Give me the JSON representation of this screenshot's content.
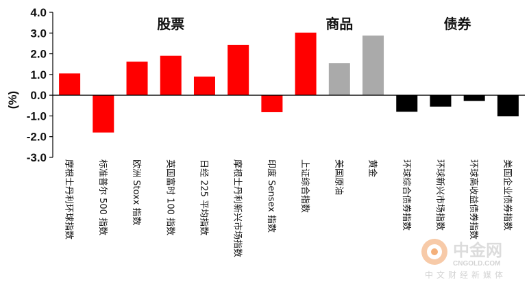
{
  "chart_data": {
    "type": "bar",
    "ylabel": "(%)",
    "ylim": [
      -3.0,
      4.0
    ],
    "yticks": [
      "4.0",
      "3.0",
      "2.0",
      "1.0",
      "0.0",
      "-1.0",
      "-2.0",
      "-3.0"
    ],
    "groups": [
      {
        "label": "股票",
        "from": 0,
        "to": 7
      },
      {
        "label": "商品",
        "from": 7,
        "to": 10
      },
      {
        "label": "债券",
        "from": 10,
        "to": 14
      }
    ],
    "categories": [
      "摩根士丹利环球指数",
      "标准普尔 500 指数",
      "欧洲 Stoxx 指数",
      "英国富时 100 指数",
      "日经 225 平均指数",
      "摩根士丹利新兴市场指数",
      "印度 Sensex 指数",
      "上证综合指数",
      "美国原油",
      "黄金",
      "环球综合债券指数",
      "环球新兴市场指数",
      "环球高收益债券指数",
      "美国企业债券指数"
    ],
    "values": [
      1.05,
      -1.8,
      1.62,
      1.9,
      0.9,
      2.42,
      -0.82,
      3.02,
      1.55,
      2.88,
      -0.8,
      -0.55,
      -0.28,
      -1.02
    ],
    "bar_colors": [
      "#ff0000",
      "#ff0000",
      "#ff0000",
      "#ff0000",
      "#ff0000",
      "#ff0000",
      "#ff0000",
      "#ff0000",
      "#aaaaaa",
      "#aaaaaa",
      "#000000",
      "#000000",
      "#000000",
      "#000000"
    ]
  },
  "watermark": {
    "brand_cn": "中金网",
    "brand_en": "CNGOLD.COM",
    "tagline": "中文财经新媒体"
  }
}
